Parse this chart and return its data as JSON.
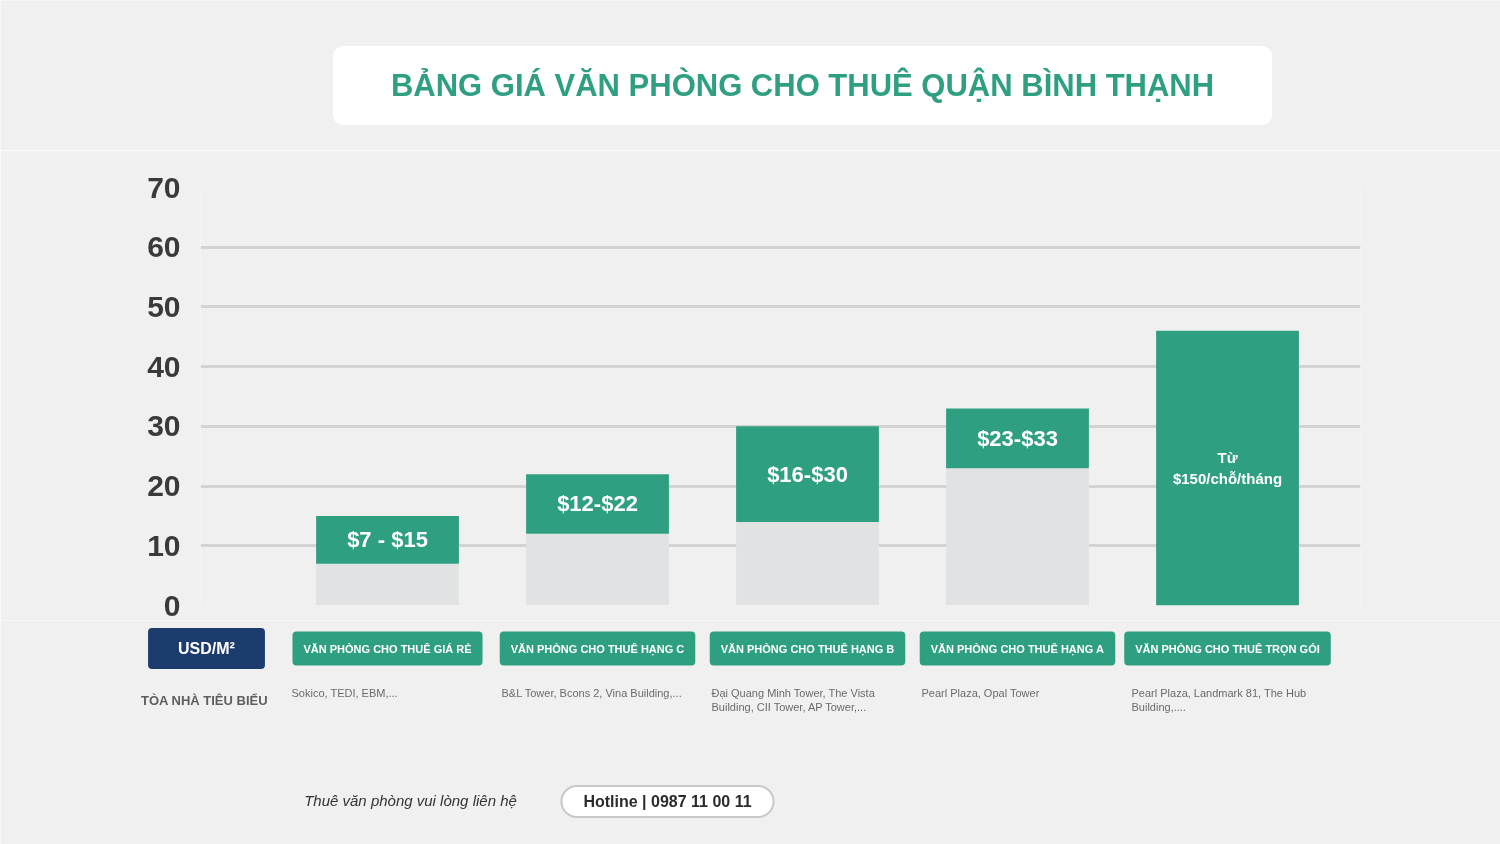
{
  "chart_data": {
    "type": "bar",
    "title": "BẢNG GIÁ VĂN PHÒNG CHO THUÊ QUẬN BÌNH THẠNH",
    "categories": [
      "VĂN PHÒNG CHO THUÊ GIÁ RẺ",
      "VĂN PHÒNG CHO THUÊ HẠNG C",
      "VĂN PHÒNG CHO THUÊ HẠNG B",
      "VĂN PHÒNG CHO THUÊ HẠNG A",
      "VĂN PHÒNG CHO THUÊ TRỌN GÓI"
    ],
    "stacked": true,
    "series": [
      {
        "color": "#e1e2e3",
        "values": [
          7,
          12,
          14,
          23,
          null
        ]
      },
      {
        "color": "#2f9f82",
        "values": [
          8,
          10,
          16,
          10,
          46
        ]
      }
    ],
    "ylim": [
      0,
      70
    ],
    "yticks": [
      0,
      10,
      20,
      30,
      40,
      50,
      60,
      70
    ],
    "grid": "y",
    "annotations": [
      "$7 - $15",
      "$12-$22",
      "$16-$30",
      "$23-$33",
      "Từ $150/chỗ/tháng",
      "USD/M²",
      "TÒA NHÀ TIÊU BIỂU",
      "Sokico, TEDI, EBM,...",
      "B&L Tower, Bcons 2, Vina Building,...",
      "Đại Quang Minh Tower, The Vista Building, CII Tower, AP Tower,...",
      "Pearl Plaza, Opal Tower",
      "Pearl Plaza, Landmark 81, The Hub Building,....",
      "Thuê văn phòng vui lòng liên hệ",
      "Hotline | 0987 11 00 11"
    ]
  }
}
